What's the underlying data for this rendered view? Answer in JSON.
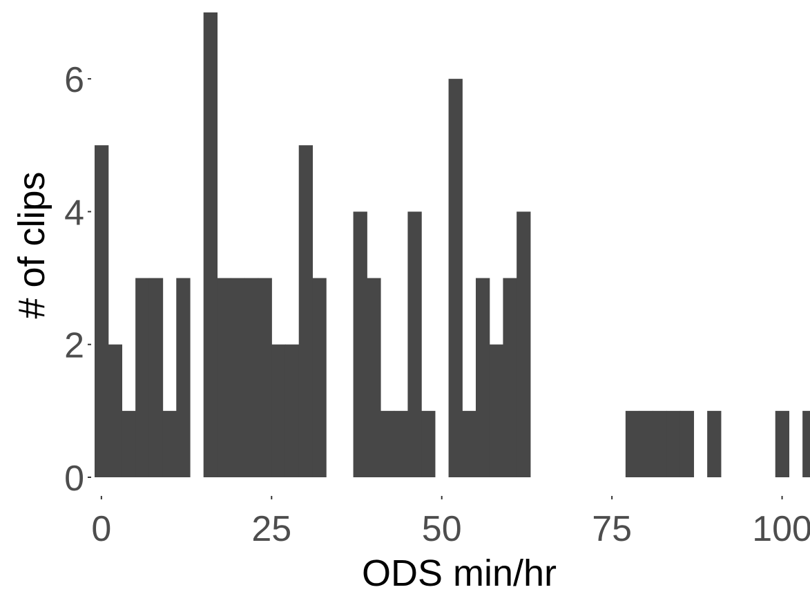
{
  "chart_data": {
    "type": "bar",
    "title": "",
    "xlabel": "ODS min/hr",
    "ylabel": "# of clips",
    "xlim": [
      -1.1,
      104.1
    ],
    "ylim": [
      0,
      7
    ],
    "bin_width": 2,
    "x_ticks": [
      0,
      25,
      50,
      75,
      100
    ],
    "y_ticks": [
      0,
      2,
      4,
      6
    ],
    "grid": false,
    "legend": "none",
    "bar_color": "#474747",
    "bins": [
      {
        "x": 0,
        "count": 5
      },
      {
        "x": 2,
        "count": 2
      },
      {
        "x": 4,
        "count": 1
      },
      {
        "x": 6,
        "count": 3
      },
      {
        "x": 8,
        "count": 3
      },
      {
        "x": 10,
        "count": 1
      },
      {
        "x": 12,
        "count": 3
      },
      {
        "x": 14,
        "count": 0
      },
      {
        "x": 16,
        "count": 7
      },
      {
        "x": 18,
        "count": 3
      },
      {
        "x": 20,
        "count": 3
      },
      {
        "x": 22,
        "count": 3
      },
      {
        "x": 24,
        "count": 3
      },
      {
        "x": 26,
        "count": 2
      },
      {
        "x": 28,
        "count": 2
      },
      {
        "x": 30,
        "count": 5
      },
      {
        "x": 32,
        "count": 3
      },
      {
        "x": 34,
        "count": 0
      },
      {
        "x": 36,
        "count": 0
      },
      {
        "x": 38,
        "count": 4
      },
      {
        "x": 40,
        "count": 3
      },
      {
        "x": 42,
        "count": 1
      },
      {
        "x": 44,
        "count": 1
      },
      {
        "x": 46,
        "count": 4
      },
      {
        "x": 48,
        "count": 1
      },
      {
        "x": 50,
        "count": 0
      },
      {
        "x": 52,
        "count": 6
      },
      {
        "x": 54,
        "count": 1
      },
      {
        "x": 56,
        "count": 3
      },
      {
        "x": 58,
        "count": 2
      },
      {
        "x": 60,
        "count": 3
      },
      {
        "x": 62,
        "count": 4
      },
      {
        "x": 78,
        "count": 1
      },
      {
        "x": 80,
        "count": 1
      },
      {
        "x": 82,
        "count": 1
      },
      {
        "x": 84,
        "count": 1
      },
      {
        "x": 86,
        "count": 1
      },
      {
        "x": 90,
        "count": 1
      },
      {
        "x": 100,
        "count": 1
      },
      {
        "x": 104,
        "count": 1
      }
    ]
  }
}
